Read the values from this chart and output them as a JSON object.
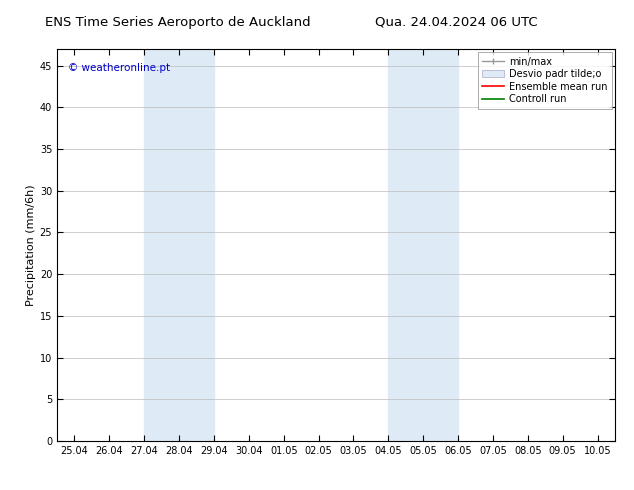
{
  "title_left": "ENS Time Series Aeroporto de Auckland",
  "title_right": "Qua. 24.04.2024 06 UTC",
  "ylabel": "Precipitation (mm/6h)",
  "ylim": [
    0,
    47
  ],
  "yticks": [
    0,
    5,
    10,
    15,
    20,
    25,
    30,
    35,
    40,
    45
  ],
  "xtick_labels": [
    "25.04",
    "26.04",
    "27.04",
    "28.04",
    "29.04",
    "30.04",
    "01.05",
    "02.05",
    "03.05",
    "04.05",
    "05.05",
    "06.05",
    "07.05",
    "08.05",
    "09.05",
    "10.05"
  ],
  "xtick_positions": [
    0,
    1,
    2,
    3,
    4,
    5,
    6,
    7,
    8,
    9,
    10,
    11,
    12,
    13,
    14,
    15
  ],
  "xmin": -0.5,
  "xmax": 15.5,
  "shaded_bands": [
    {
      "x_start": 2,
      "x_end": 4,
      "color": "#deeaf5"
    },
    {
      "x_start": 9,
      "x_end": 11,
      "color": "#deeaf5"
    }
  ],
  "watermark_text": "© weatheronline.pt",
  "watermark_color": "#0000cc",
  "background_color": "#ffffff",
  "plot_bg_color": "#ffffff",
  "title_fontsize": 9.5,
  "tick_fontsize": 7,
  "ylabel_fontsize": 8,
  "legend_fontsize": 7,
  "grid_color": "#bbbbbb",
  "spine_color": "#000000"
}
